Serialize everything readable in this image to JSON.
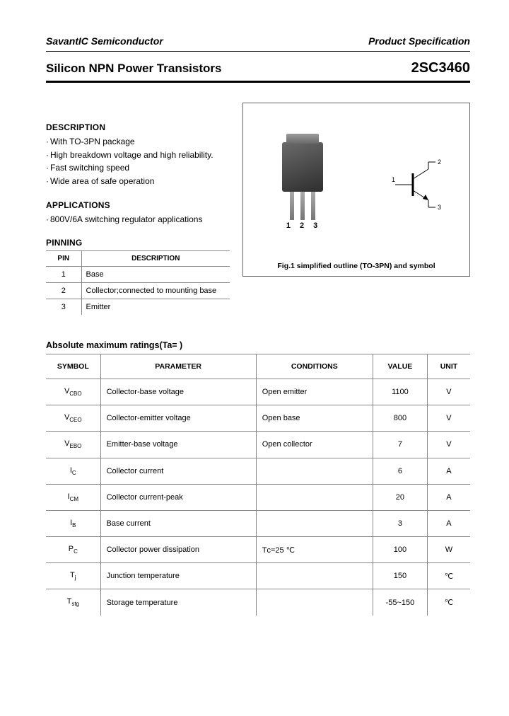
{
  "header": {
    "company": "SavantIC Semiconductor",
    "spec_label": "Product Specification",
    "product_title": "Silicon NPN Power Transistors",
    "part_number": "2SC3460"
  },
  "description": {
    "heading": "DESCRIPTION",
    "items": [
      "With TO-3PN package",
      "High breakdown voltage and high reliability.",
      "Fast switching speed",
      "Wide area of safe operation"
    ]
  },
  "applications": {
    "heading": "APPLICATIONS",
    "items": [
      "800V/6A switching regulator applications"
    ]
  },
  "pinning": {
    "heading": "PINNING",
    "col_pin": "PIN",
    "col_desc": "DESCRIPTION",
    "rows": [
      {
        "pin": "1",
        "desc": "Base"
      },
      {
        "pin": "2",
        "desc": "Collector;connected to mounting base"
      },
      {
        "pin": "3",
        "desc": "Emitter"
      }
    ]
  },
  "figure": {
    "caption": "Fig.1 simplified outline (TO-3PN) and symbol",
    "pin_labels": [
      "1",
      "2",
      "3"
    ],
    "symbol_labels": {
      "base": "1",
      "collector": "2",
      "emitter": "3"
    }
  },
  "ratings": {
    "heading": "Absolute maximum ratings(Ta=    )",
    "cols": [
      "SYMBOL",
      "PARAMETER",
      "CONDITIONS",
      "VALUE",
      "UNIT"
    ],
    "rows": [
      {
        "sym": "V",
        "sub": "CBO",
        "param": "Collector-base voltage",
        "cond": "Open emitter",
        "val": "1100",
        "unit": "V"
      },
      {
        "sym": "V",
        "sub": "CEO",
        "param": "Collector-emitter voltage",
        "cond": "Open base",
        "val": "800",
        "unit": "V"
      },
      {
        "sym": "V",
        "sub": "EBO",
        "param": "Emitter-base voltage",
        "cond": "Open collector",
        "val": "7",
        "unit": "V"
      },
      {
        "sym": "I",
        "sub": "C",
        "param": "Collector current",
        "cond": "",
        "val": "6",
        "unit": "A"
      },
      {
        "sym": "I",
        "sub": "CM",
        "param": "Collector current-peak",
        "cond": "",
        "val": "20",
        "unit": "A"
      },
      {
        "sym": "I",
        "sub": "B",
        "param": "Base current",
        "cond": "",
        "val": "3",
        "unit": "A"
      },
      {
        "sym": "P",
        "sub": "C",
        "param": "Collector power dissipation",
        "cond": "Tᴄ=25 ℃",
        "val": "100",
        "unit": "W"
      },
      {
        "sym": "T",
        "sub": "j",
        "param": "Junction temperature",
        "cond": "",
        "val": "150",
        "unit": "℃"
      },
      {
        "sym": "T",
        "sub": "stg",
        "param": "Storage temperature",
        "cond": "",
        "val": "-55~150",
        "unit": "℃"
      }
    ]
  },
  "colors": {
    "text": "#000000",
    "border": "#888888",
    "bg": "#ffffff"
  }
}
